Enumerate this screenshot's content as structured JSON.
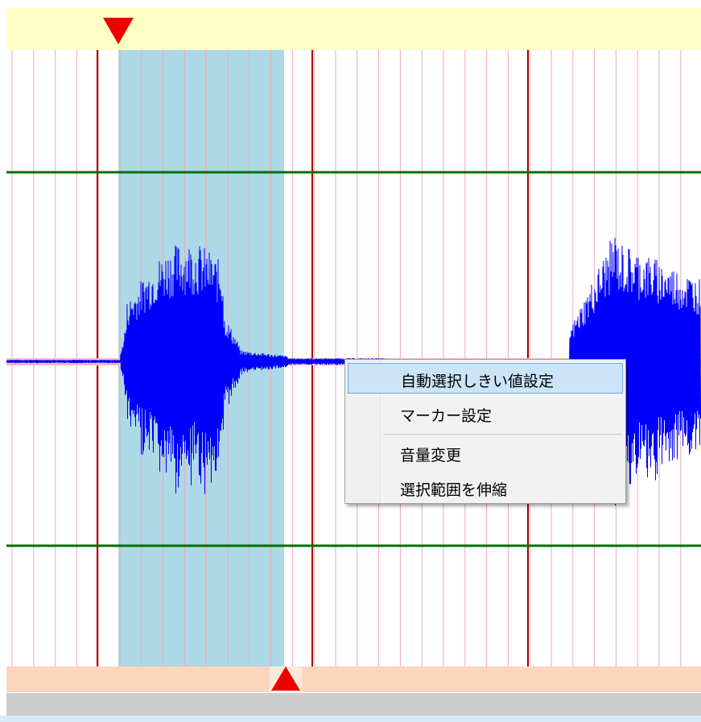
{
  "context_menu": {
    "items": [
      {
        "label": "自動選択しきい値設定",
        "highlighted": true
      },
      {
        "label": "マーカー設定",
        "highlighted": false
      },
      {
        "label": "音量変更",
        "highlighted": false
      },
      {
        "label": "選択範囲を伸縮",
        "highlighted": false
      }
    ]
  },
  "colors": {
    "waveform": "#0000ff",
    "selection": "#add8e6",
    "minor_gridline": "#f4a6b4",
    "major_gridline": "#aa0000",
    "level_line": "#007000",
    "zero_line": "#f8b6c6",
    "marker": "#ee0000",
    "top_ruler": "#ffffc6",
    "bottom_ruler": "#fbd6bd"
  }
}
